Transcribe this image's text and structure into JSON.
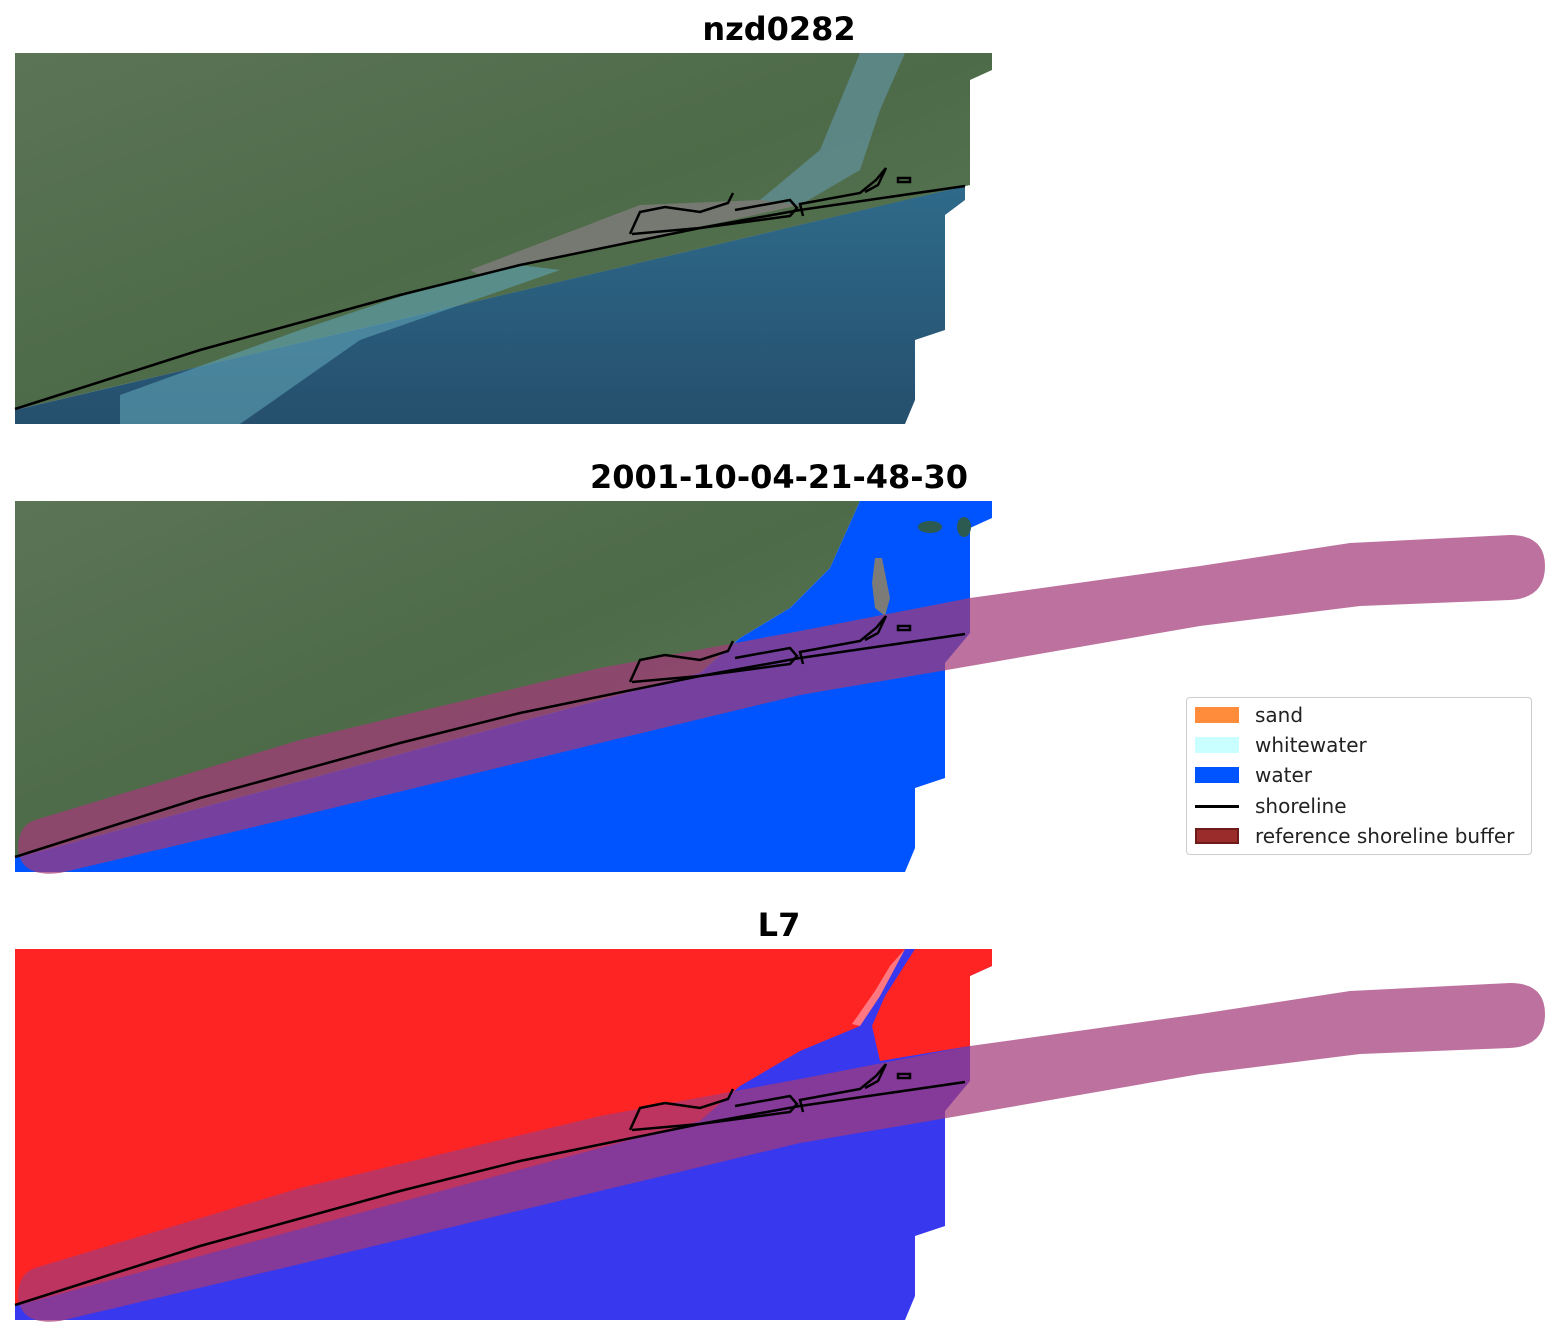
{
  "panels": [
    {
      "title": "nzd0282",
      "kind": "rgb"
    },
    {
      "title": "2001-10-04-21-48-30",
      "kind": "classified"
    },
    {
      "title": "L7",
      "kind": "mndwi"
    }
  ],
  "legend": {
    "items": [
      {
        "label": "sand",
        "color": "#ff8c3a",
        "type": "patch"
      },
      {
        "label": "whitewater",
        "color": "#c9ffff",
        "type": "patch"
      },
      {
        "label": "water",
        "color": "#0054ff",
        "type": "patch"
      },
      {
        "label": "shoreline",
        "color": "#000000",
        "type": "line"
      },
      {
        "label": "reference shoreline buffer",
        "color": "#9b2c2c",
        "type": "patch"
      }
    ]
  },
  "colors": {
    "land_green": "#4f6e4a",
    "sea_blue": "#2d5f80",
    "water_class": "#0054ff",
    "buffer": "#a43a78",
    "land_red": "#ff2424",
    "water_blue_index": "#3a3aee"
  }
}
